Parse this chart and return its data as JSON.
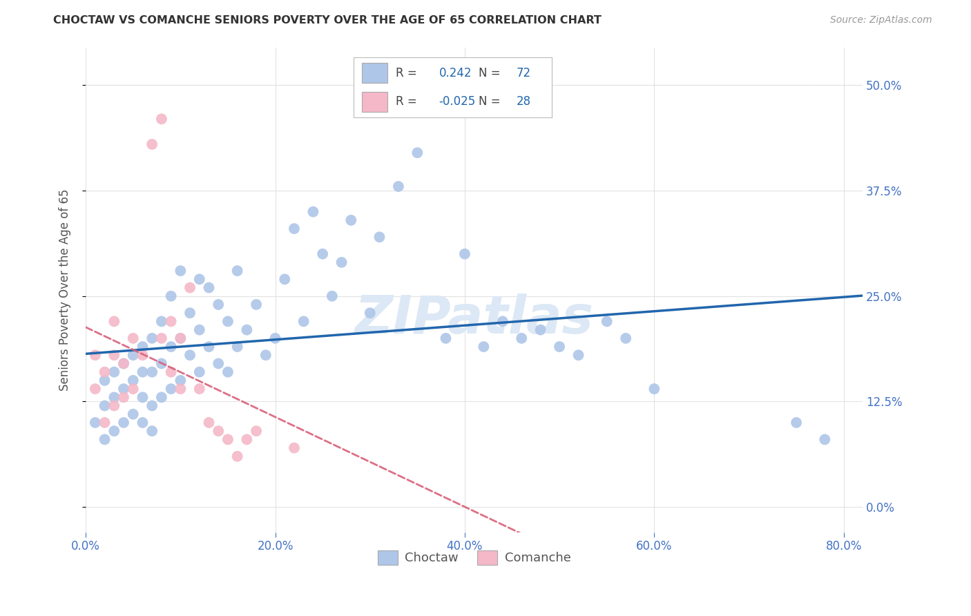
{
  "title": "CHOCTAW VS COMANCHE SENIORS POVERTY OVER THE AGE OF 65 CORRELATION CHART",
  "source": "Source: ZipAtlas.com",
  "ylabel": "Seniors Poverty Over the Age of 65",
  "xlim": [
    0.0,
    0.82
  ],
  "ylim": [
    -0.03,
    0.545
  ],
  "choctaw_R": 0.242,
  "choctaw_N": 72,
  "comanche_R": -0.025,
  "comanche_N": 28,
  "choctaw_color": "#aec6e8",
  "comanche_color": "#f4b8c8",
  "choctaw_line_color": "#2166ac",
  "comanche_line_color": "#d9607a",
  "watermark": "ZIPatlas",
  "watermark_color": "#dce8f5",
  "background_color": "#ffffff",
  "grid_color": "#dddddd",
  "title_color": "#333333",
  "axis_label_color": "#555555",
  "tick_label_color": "#4472c4",
  "ytick_vals": [
    0.0,
    0.125,
    0.25,
    0.375,
    0.5
  ],
  "ytick_labels": [
    "0.0%",
    "12.5%",
    "25.0%",
    "37.5%",
    "50.0%"
  ],
  "xtick_vals": [
    0.0,
    0.2,
    0.4,
    0.6,
    0.8
  ],
  "xtick_labels": [
    "0.0%",
    "20.0%",
    "40.0%",
    "60.0%",
    "80.0%"
  ],
  "choctaw_x": [
    0.01,
    0.02,
    0.02,
    0.02,
    0.03,
    0.03,
    0.03,
    0.04,
    0.04,
    0.04,
    0.05,
    0.05,
    0.05,
    0.06,
    0.06,
    0.06,
    0.06,
    0.07,
    0.07,
    0.07,
    0.07,
    0.08,
    0.08,
    0.08,
    0.09,
    0.09,
    0.09,
    0.1,
    0.1,
    0.1,
    0.11,
    0.11,
    0.12,
    0.12,
    0.12,
    0.13,
    0.13,
    0.14,
    0.14,
    0.15,
    0.15,
    0.16,
    0.16,
    0.17,
    0.18,
    0.19,
    0.2,
    0.21,
    0.22,
    0.23,
    0.24,
    0.25,
    0.26,
    0.27,
    0.28,
    0.3,
    0.31,
    0.33,
    0.35,
    0.38,
    0.4,
    0.42,
    0.44,
    0.46,
    0.48,
    0.5,
    0.52,
    0.55,
    0.57,
    0.6,
    0.75,
    0.78
  ],
  "choctaw_y": [
    0.1,
    0.08,
    0.12,
    0.15,
    0.09,
    0.13,
    0.16,
    0.1,
    0.14,
    0.17,
    0.11,
    0.15,
    0.18,
    0.1,
    0.13,
    0.16,
    0.19,
    0.09,
    0.12,
    0.16,
    0.2,
    0.13,
    0.17,
    0.22,
    0.14,
    0.19,
    0.25,
    0.15,
    0.2,
    0.28,
    0.18,
    0.23,
    0.16,
    0.21,
    0.27,
    0.19,
    0.26,
    0.17,
    0.24,
    0.16,
    0.22,
    0.19,
    0.28,
    0.21,
    0.24,
    0.18,
    0.2,
    0.27,
    0.33,
    0.22,
    0.35,
    0.3,
    0.25,
    0.29,
    0.34,
    0.23,
    0.32,
    0.38,
    0.42,
    0.2,
    0.3,
    0.19,
    0.22,
    0.2,
    0.21,
    0.19,
    0.18,
    0.22,
    0.2,
    0.14,
    0.1,
    0.08
  ],
  "comanche_x": [
    0.01,
    0.01,
    0.02,
    0.02,
    0.03,
    0.03,
    0.03,
    0.04,
    0.04,
    0.05,
    0.05,
    0.06,
    0.07,
    0.08,
    0.08,
    0.09,
    0.09,
    0.1,
    0.1,
    0.11,
    0.12,
    0.13,
    0.14,
    0.15,
    0.16,
    0.17,
    0.18,
    0.22
  ],
  "comanche_y": [
    0.14,
    0.18,
    0.1,
    0.16,
    0.12,
    0.18,
    0.22,
    0.13,
    0.17,
    0.14,
    0.2,
    0.18,
    0.43,
    0.46,
    0.2,
    0.16,
    0.22,
    0.14,
    0.2,
    0.26,
    0.14,
    0.1,
    0.09,
    0.08,
    0.06,
    0.08,
    0.09,
    0.07
  ]
}
